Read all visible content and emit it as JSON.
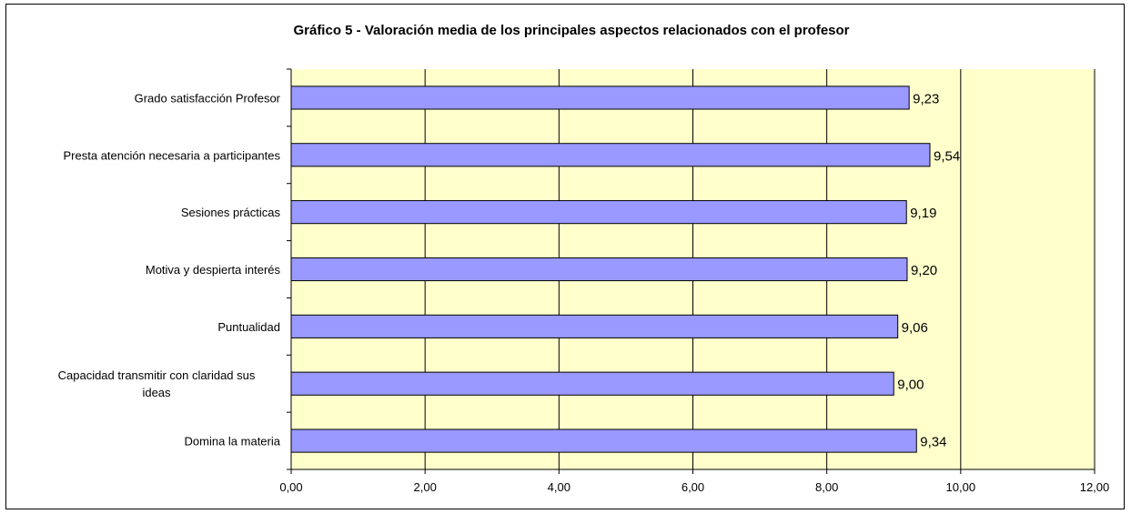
{
  "chart_data": {
    "type": "bar",
    "orientation": "horizontal",
    "title": "Gráfico 5 - Valoración media de los principales aspectos relacionados con el profesor",
    "categories": [
      "Grado satisfacción Profesor",
      "Presta atención necesaria a participantes",
      "Sesiones prácticas",
      "Motiva y despierta interés",
      "Puntualidad",
      "Capacidad transmitir con claridad sus ideas",
      "Domina la materia"
    ],
    "category_label_lines": [
      [
        "Grado satisfacción Profesor"
      ],
      [
        "Presta atención necesaria a participantes"
      ],
      [
        "Sesiones prácticas"
      ],
      [
        "Motiva y despierta interés"
      ],
      [
        "Puntualidad"
      ],
      [
        "Capacidad transmitir con claridad sus",
        "ideas"
      ],
      [
        "Domina la materia"
      ]
    ],
    "values": [
      9.23,
      9.54,
      9.19,
      9.2,
      9.06,
      9.0,
      9.34
    ],
    "data_labels": [
      "9,23",
      "9,54",
      "9,19",
      "9,20",
      "9,06",
      "9,00",
      "9,34"
    ],
    "xlim": [
      0,
      12
    ],
    "x_ticks": [
      0,
      2,
      4,
      6,
      8,
      10,
      12
    ],
    "x_tick_labels": [
      "0,00",
      "2,00",
      "4,00",
      "6,00",
      "8,00",
      "10,00",
      "12,00"
    ],
    "xlabel": "",
    "ylabel": "",
    "grid": "vertical",
    "legend": "none",
    "colors": {
      "bar_fill": "#9999ff",
      "bar_stroke": "#000000",
      "plot_background": "#ffffcc",
      "grid": "#000000"
    }
  }
}
